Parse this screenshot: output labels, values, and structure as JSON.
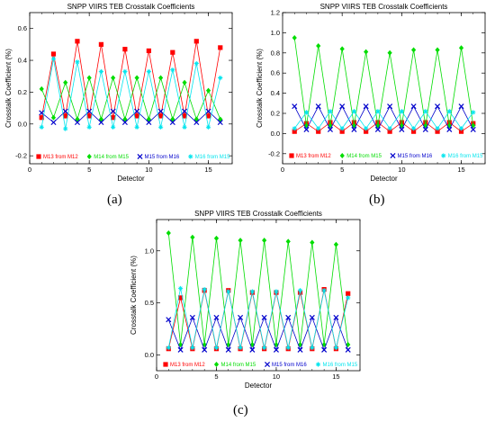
{
  "captions": [
    "(a)",
    "(b)",
    "(c)"
  ],
  "chart_data": [
    {
      "type": "line",
      "title": "SNPP VIIRS TEB Crosstalk Coefficients",
      "xlabel": "Detector",
      "ylabel": "Crosstalk Coefficient (%)",
      "xlim": [
        0,
        17
      ],
      "ylim": [
        -0.25,
        0.7
      ],
      "xticks": [
        0,
        5,
        10,
        15
      ],
      "yticks": [
        -0.2,
        0.0,
        0.2,
        0.4,
        0.6
      ],
      "ytick_labels": [
        "-0.2",
        "0.0",
        "0.2",
        "0.4",
        "0.6"
      ],
      "legend_position": "bottom",
      "x": [
        1,
        2,
        3,
        4,
        5,
        6,
        7,
        8,
        9,
        10,
        11,
        12,
        13,
        14,
        15,
        16
      ],
      "series": [
        {
          "name": "M13 from M12",
          "color": "#ff0000",
          "marker": "square",
          "values": [
            0.04,
            0.44,
            0.05,
            0.52,
            0.05,
            0.5,
            0.04,
            0.47,
            0.05,
            0.46,
            0.05,
            0.45,
            0.05,
            0.52,
            0.05,
            0.48
          ]
        },
        {
          "name": "M14 from M15",
          "color": "#00dd00",
          "marker": "diamond",
          "values": [
            0.22,
            0.04,
            0.26,
            0.03,
            0.29,
            0.03,
            0.29,
            0.03,
            0.29,
            0.03,
            0.29,
            0.03,
            0.26,
            0.03,
            0.21,
            0.03
          ]
        },
        {
          "name": "M15 from M16",
          "color": "#0000cc",
          "marker": "x",
          "values": [
            0.07,
            0.01,
            0.08,
            0.01,
            0.08,
            0.01,
            0.08,
            0.01,
            0.08,
            0.01,
            0.08,
            0.01,
            0.08,
            0.01,
            0.08,
            0.01
          ]
        },
        {
          "name": "M16 from M15",
          "color": "#00e5ee",
          "marker": "star",
          "values": [
            -0.02,
            0.41,
            -0.03,
            0.39,
            -0.02,
            0.33,
            -0.02,
            0.33,
            -0.02,
            0.33,
            -0.02,
            0.34,
            -0.02,
            0.38,
            -0.02,
            0.29
          ]
        }
      ]
    },
    {
      "type": "line",
      "title": "SNPP VIIRS TEB Crosstalk Coefficients",
      "xlabel": "Detector",
      "ylabel": "Crosstalk Coefficient (%)",
      "xlim": [
        0,
        17
      ],
      "ylim": [
        -0.3,
        1.2
      ],
      "xticks": [
        0,
        5,
        10,
        15
      ],
      "yticks": [
        -0.2,
        0.0,
        0.2,
        0.4,
        0.6,
        0.8,
        1.0,
        1.2
      ],
      "ytick_labels": [
        "-0.2",
        "0.0",
        "0.2",
        "0.4",
        "0.6",
        "0.8",
        "1.0",
        "1.2"
      ],
      "legend_position": "bottom",
      "x": [
        1,
        2,
        3,
        4,
        5,
        6,
        7,
        8,
        9,
        10,
        11,
        12,
        13,
        14,
        15,
        16
      ],
      "series": [
        {
          "name": "M13 from M12",
          "color": "#ff0000",
          "marker": "square",
          "values": [
            0.02,
            0.1,
            0.02,
            0.11,
            0.02,
            0.11,
            0.02,
            0.11,
            0.02,
            0.11,
            0.02,
            0.11,
            0.02,
            0.11,
            0.02,
            0.1
          ]
        },
        {
          "name": "M14 from M15",
          "color": "#00dd00",
          "marker": "diamond",
          "values": [
            0.95,
            0.08,
            0.87,
            0.08,
            0.84,
            0.08,
            0.81,
            0.08,
            0.8,
            0.08,
            0.83,
            0.08,
            0.83,
            0.08,
            0.85,
            0.08
          ]
        },
        {
          "name": "M15 from M16",
          "color": "#0000cc",
          "marker": "x",
          "values": [
            0.27,
            0.04,
            0.27,
            0.04,
            0.27,
            0.04,
            0.27,
            0.04,
            0.27,
            0.04,
            0.27,
            0.04,
            0.27,
            0.04,
            0.27,
            0.04
          ]
        },
        {
          "name": "M16 from M15",
          "color": "#00e5ee",
          "marker": "star",
          "values": [
            0.05,
            0.21,
            0.05,
            0.22,
            0.05,
            0.22,
            0.05,
            0.22,
            0.05,
            0.22,
            0.05,
            0.22,
            0.05,
            0.22,
            0.05,
            0.21
          ]
        }
      ]
    },
    {
      "type": "line",
      "title": "SNPP VIIRS TEB Crosstalk Coefficients",
      "xlabel": "Detector",
      "ylabel": "Crosstalk Coefficient (%)",
      "xlim": [
        0,
        17
      ],
      "ylim": [
        -0.15,
        1.3
      ],
      "xticks": [
        0,
        5,
        10,
        15
      ],
      "yticks": [
        0.0,
        0.5,
        1.0
      ],
      "ytick_labels": [
        "0.0",
        "0.5",
        "1.0"
      ],
      "legend_position": "bottom",
      "x": [
        1,
        2,
        3,
        4,
        5,
        6,
        7,
        8,
        9,
        10,
        11,
        12,
        13,
        14,
        15,
        16
      ],
      "series": [
        {
          "name": "M13 from M12",
          "color": "#ff0000",
          "marker": "square",
          "values": [
            0.06,
            0.55,
            0.06,
            0.62,
            0.06,
            0.62,
            0.06,
            0.6,
            0.06,
            0.6,
            0.06,
            0.6,
            0.06,
            0.63,
            0.06,
            0.59
          ]
        },
        {
          "name": "M14 from M15",
          "color": "#00dd00",
          "marker": "diamond",
          "values": [
            1.17,
            0.1,
            1.13,
            0.1,
            1.12,
            0.1,
            1.1,
            0.1,
            1.1,
            0.1,
            1.09,
            0.1,
            1.08,
            0.1,
            1.06,
            0.1
          ]
        },
        {
          "name": "M15 from M16",
          "color": "#0000cc",
          "marker": "x",
          "values": [
            0.34,
            0.05,
            0.36,
            0.05,
            0.36,
            0.05,
            0.36,
            0.05,
            0.36,
            0.05,
            0.36,
            0.05,
            0.36,
            0.05,
            0.36,
            0.05
          ]
        },
        {
          "name": "M16 from M15",
          "color": "#00e5ee",
          "marker": "star",
          "values": [
            0.07,
            0.64,
            0.07,
            0.63,
            0.07,
            0.61,
            0.07,
            0.61,
            0.07,
            0.61,
            0.07,
            0.62,
            0.07,
            0.62,
            0.07,
            0.55
          ]
        }
      ]
    }
  ]
}
